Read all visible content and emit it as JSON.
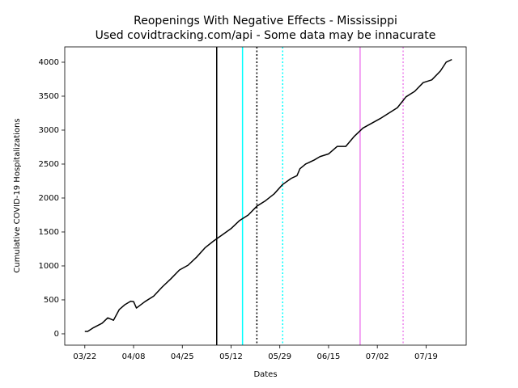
{
  "chart_data": {
    "type": "line",
    "title": "Reopenings With Negative Effects - Mississippi",
    "subtitle": "Used covidtracking.com/api - Some data may be innacurate",
    "x_label": "Dates",
    "y_label": "Cumulative COVID-19 Hospitalizations",
    "xlim": [
      "03/15",
      "08/02"
    ],
    "xticks": [
      "03/22",
      "04/08",
      "04/25",
      "05/12",
      "05/29",
      "06/15",
      "07/02",
      "07/19"
    ],
    "ylim": [
      -167,
      4226
    ],
    "yticks": [
      0,
      500,
      1000,
      1500,
      2000,
      2500,
      3000,
      3500,
      4000
    ],
    "x": [
      "03/22",
      "03/23",
      "03/25",
      "03/28",
      "03/30",
      "04/01",
      "04/03",
      "04/05",
      "04/07",
      "04/08",
      "04/09",
      "04/12",
      "04/15",
      "04/18",
      "04/21",
      "04/24",
      "04/27",
      "04/30",
      "05/03",
      "05/06",
      "05/09",
      "05/12",
      "05/15",
      "05/18",
      "05/21",
      "05/24",
      "05/27",
      "05/30",
      "06/02",
      "06/04",
      "06/05",
      "06/07",
      "06/10",
      "06/12",
      "06/15",
      "06/18",
      "06/21",
      "06/24",
      "06/27",
      "06/30",
      "07/03",
      "07/06",
      "07/09",
      "07/12",
      "07/15",
      "07/18",
      "07/21",
      "07/24",
      "07/26",
      "07/28"
    ],
    "series": [
      {
        "name": "Hospitalizations",
        "color": "#000000",
        "values": [
          36,
          36,
          90,
          155,
          235,
          200,
          357,
          430,
          480,
          475,
          380,
          475,
          555,
          690,
          810,
          940,
          1010,
          1130,
          1270,
          1370,
          1460,
          1550,
          1670,
          1750,
          1880,
          1960,
          2060,
          2200,
          2290,
          2330,
          2430,
          2500,
          2560,
          2610,
          2650,
          2760,
          2760,
          2910,
          3030,
          3100,
          3170,
          3250,
          3330,
          3490,
          3570,
          3700,
          3740,
          3870,
          4000,
          4040
        ]
      }
    ],
    "vlines": [
      {
        "x": "05/07",
        "color": "#000000",
        "style": "solid"
      },
      {
        "x": "05/16",
        "color": "#00ffff",
        "style": "solid"
      },
      {
        "x": "05/21",
        "color": "#000000",
        "style": "dotted"
      },
      {
        "x": "05/30",
        "color": "#00ffff",
        "style": "dotted"
      },
      {
        "x": "06/26",
        "color": "#ee82ee",
        "style": "solid"
      },
      {
        "x": "07/11",
        "color": "#ee82ee",
        "style": "dotted"
      }
    ]
  }
}
